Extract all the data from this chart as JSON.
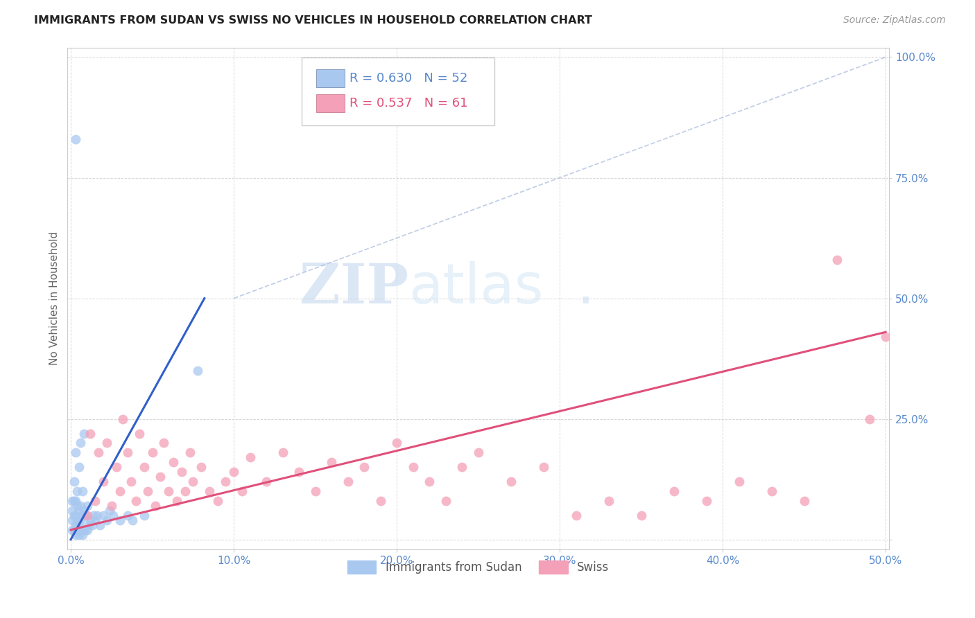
{
  "title": "IMMIGRANTS FROM SUDAN VS SWISS NO VEHICLES IN HOUSEHOLD CORRELATION CHART",
  "source": "Source: ZipAtlas.com",
  "ylabel": "No Vehicles in Household",
  "xlim": [
    -0.002,
    0.502
  ],
  "ylim": [
    -0.02,
    1.02
  ],
  "xticks": [
    0.0,
    0.1,
    0.2,
    0.3,
    0.4,
    0.5
  ],
  "xtick_labels": [
    "0.0%",
    "10.0%",
    "20.0%",
    "30.0%",
    "40.0%",
    "50.0%"
  ],
  "yticks": [
    0.0,
    0.25,
    0.5,
    0.75,
    1.0
  ],
  "ytick_labels": [
    "",
    "25.0%",
    "50.0%",
    "75.0%",
    "100.0%"
  ],
  "legend1_label": "Immigrants from Sudan",
  "legend2_label": "Swiss",
  "r1": "0.630",
  "n1": "52",
  "r2": "0.537",
  "n2": "61",
  "color1": "#a8c8f0",
  "color2": "#f4a0b8",
  "line1_color": "#3060c8",
  "line2_color": "#e0507a",
  "axis_tick_color": "#5888cc",
  "watermark_zip": "ZIP",
  "watermark_atlas": "atlas",
  "watermark_dot": ".",
  "background_color": "#ffffff",
  "sudan_x": [
    0.001,
    0.001,
    0.001,
    0.001,
    0.002,
    0.002,
    0.002,
    0.002,
    0.003,
    0.003,
    0.003,
    0.003,
    0.003,
    0.004,
    0.004,
    0.004,
    0.004,
    0.005,
    0.005,
    0.005,
    0.005,
    0.006,
    0.006,
    0.006,
    0.006,
    0.007,
    0.007,
    0.007,
    0.008,
    0.008,
    0.008,
    0.009,
    0.009,
    0.01,
    0.01,
    0.011,
    0.012,
    0.013,
    0.014,
    0.015,
    0.016,
    0.018,
    0.02,
    0.022,
    0.024,
    0.026,
    0.03,
    0.035,
    0.038,
    0.045,
    0.003,
    0.078
  ],
  "sudan_y": [
    0.02,
    0.04,
    0.06,
    0.08,
    0.02,
    0.05,
    0.08,
    0.12,
    0.01,
    0.03,
    0.05,
    0.08,
    0.18,
    0.02,
    0.04,
    0.07,
    0.1,
    0.01,
    0.03,
    0.06,
    0.15,
    0.02,
    0.04,
    0.07,
    0.2,
    0.01,
    0.05,
    0.1,
    0.02,
    0.06,
    0.22,
    0.02,
    0.05,
    0.02,
    0.07,
    0.03,
    0.04,
    0.03,
    0.05,
    0.04,
    0.05,
    0.03,
    0.05,
    0.04,
    0.06,
    0.05,
    0.04,
    0.05,
    0.04,
    0.05,
    0.83,
    0.35
  ],
  "swiss_x": [
    0.01,
    0.012,
    0.015,
    0.017,
    0.02,
    0.022,
    0.025,
    0.028,
    0.03,
    0.032,
    0.035,
    0.037,
    0.04,
    0.042,
    0.045,
    0.047,
    0.05,
    0.052,
    0.055,
    0.057,
    0.06,
    0.063,
    0.065,
    0.068,
    0.07,
    0.073,
    0.075,
    0.08,
    0.085,
    0.09,
    0.095,
    0.1,
    0.105,
    0.11,
    0.12,
    0.13,
    0.14,
    0.15,
    0.16,
    0.17,
    0.18,
    0.19,
    0.2,
    0.21,
    0.22,
    0.23,
    0.24,
    0.25,
    0.27,
    0.29,
    0.31,
    0.33,
    0.35,
    0.37,
    0.39,
    0.41,
    0.43,
    0.45,
    0.47,
    0.49,
    0.5
  ],
  "swiss_y": [
    0.05,
    0.22,
    0.08,
    0.18,
    0.12,
    0.2,
    0.07,
    0.15,
    0.1,
    0.25,
    0.18,
    0.12,
    0.08,
    0.22,
    0.15,
    0.1,
    0.18,
    0.07,
    0.13,
    0.2,
    0.1,
    0.16,
    0.08,
    0.14,
    0.1,
    0.18,
    0.12,
    0.15,
    0.1,
    0.08,
    0.12,
    0.14,
    0.1,
    0.17,
    0.12,
    0.18,
    0.14,
    0.1,
    0.16,
    0.12,
    0.15,
    0.08,
    0.2,
    0.15,
    0.12,
    0.08,
    0.15,
    0.18,
    0.12,
    0.15,
    0.05,
    0.08,
    0.05,
    0.1,
    0.08,
    0.12,
    0.1,
    0.08,
    0.58,
    0.25,
    0.42
  ],
  "blue_line_x": [
    0.0,
    0.082
  ],
  "blue_line_y": [
    0.0,
    0.5
  ],
  "pink_line_x": [
    0.0,
    0.5
  ],
  "pink_line_y": [
    0.02,
    0.43
  ],
  "dash_line_x": [
    0.1,
    0.5
  ],
  "dash_line_y": [
    0.5,
    1.0
  ]
}
